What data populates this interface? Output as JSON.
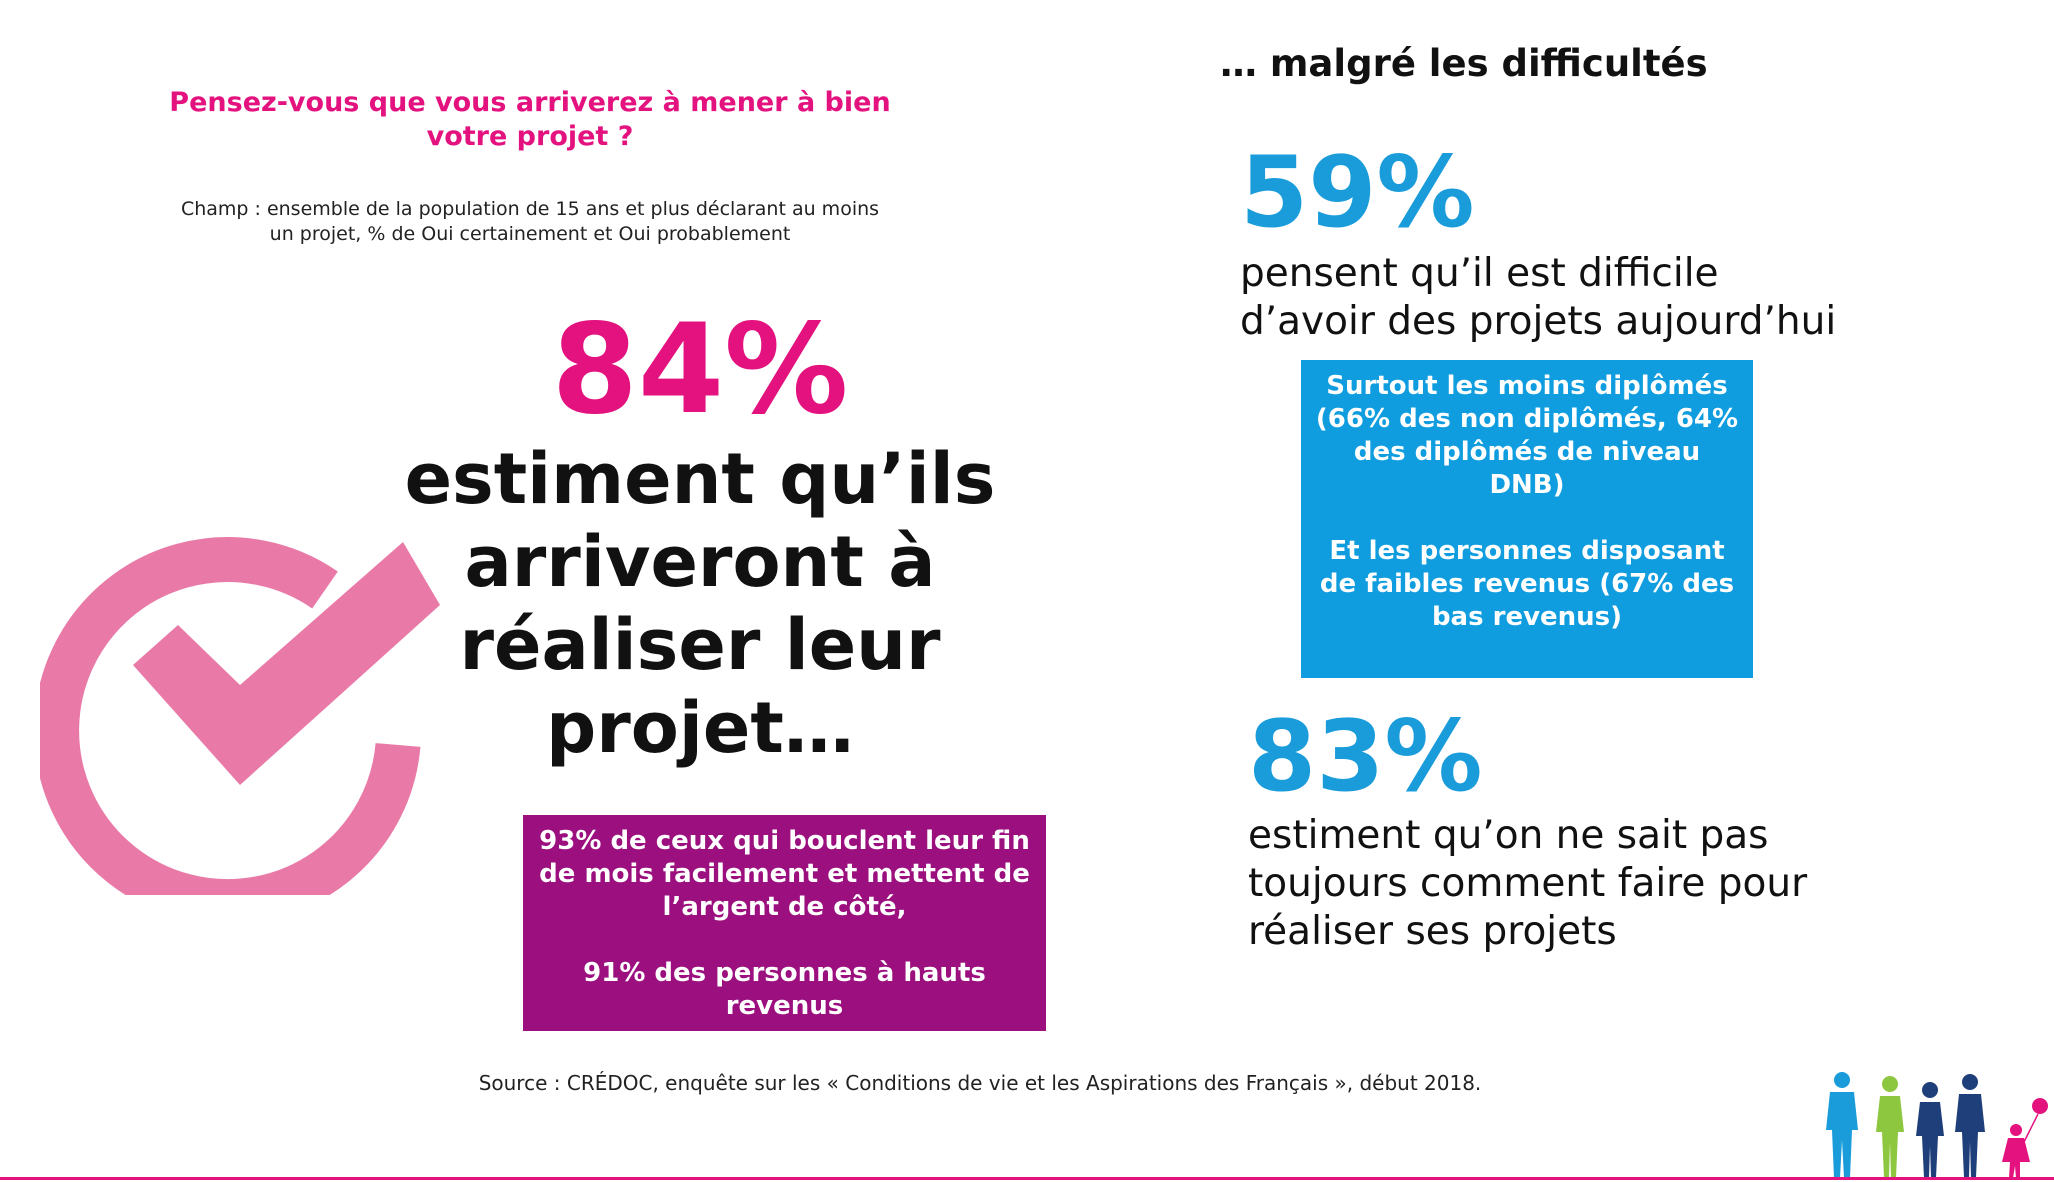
{
  "left": {
    "question": "Pensez-vous que vous arriverez à mener à bien votre projet ?",
    "scope": "Champ : ensemble de la population de 15 ans et plus déclarant au moins un projet, % de Oui certainement et Oui probablement",
    "main_pct": "84%",
    "main_statement_lines": [
      "estiment qu’ils",
      "arriveront à",
      "réaliser leur",
      "projet…"
    ],
    "box_lines": [
      "93% de ceux qui bouclent leur fin de mois facilement et mettent de l’argent de côté,",
      "91% des personnes à hauts revenus"
    ]
  },
  "right": {
    "heading": "… malgré les difficultés",
    "stat1_pct": "59%",
    "stat1_lines": [
      "pensent qu’il est difficile",
      "d’avoir des projets aujourd’hui"
    ],
    "box_para1": "Surtout les moins diplômés (66% des non diplômés, 64% des diplômés de niveau DNB)",
    "box_para2": "Et les personnes disposant de faibles revenus (67% des bas revenus)",
    "stat2_pct": "83%",
    "stat2_lines": [
      "estiment qu’on ne sait pas",
      "toujours comment faire pour",
      "réaliser ses projets"
    ]
  },
  "source": "Source : CRÉDOC, enquête sur les « Conditions de vie et les Aspirations des Français », début 2018.",
  "icons": {
    "checkmark": "check-circle-icon",
    "family": "family-silhouette-icon"
  },
  "colors": {
    "pink": "#e3127f",
    "check_pink": "#e97aa8",
    "purple": "#9b0f7e",
    "blue": "#1a9cdb",
    "blue_box": "#0f9ddf"
  }
}
